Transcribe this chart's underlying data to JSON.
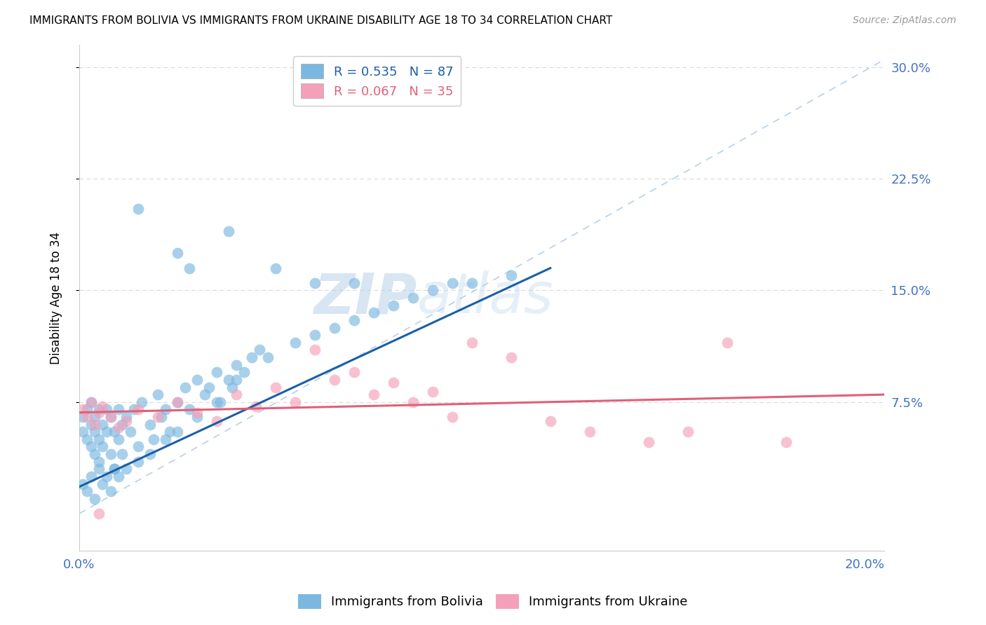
{
  "title": "IMMIGRANTS FROM BOLIVIA VS IMMIGRANTS FROM UKRAINE DISABILITY AGE 18 TO 34 CORRELATION CHART",
  "source": "Source: ZipAtlas.com",
  "ylabel": "Disability Age 18 to 34",
  "bolivia_R": 0.535,
  "bolivia_N": 87,
  "ukraine_R": 0.067,
  "ukraine_N": 35,
  "bolivia_color": "#7ab8e0",
  "ukraine_color": "#f4a0b8",
  "bolivia_line_color": "#1a5fa8",
  "ukraine_line_color": "#e0607a",
  "ref_line_color": "#b8cfe8",
  "ytick_labels": [
    "7.5%",
    "15.0%",
    "22.5%",
    "30.0%"
  ],
  "ytick_values": [
    0.075,
    0.15,
    0.225,
    0.3
  ],
  "xtick_positions": [
    0.0,
    0.05,
    0.1,
    0.15,
    0.2
  ],
  "xtick_labels": [
    "0.0%",
    "",
    "",
    "",
    "20.0%"
  ],
  "xlim": [
    0.0,
    0.205
  ],
  "ylim": [
    -0.025,
    0.315
  ],
  "watermark_zip": "ZIP",
  "watermark_atlas": "atlas",
  "background_color": "#ffffff",
  "grid_color": "#d8d8d8",
  "bolivia_x": [
    0.001,
    0.001,
    0.002,
    0.002,
    0.003,
    0.003,
    0.003,
    0.004,
    0.004,
    0.004,
    0.005,
    0.005,
    0.005,
    0.006,
    0.006,
    0.007,
    0.007,
    0.008,
    0.008,
    0.009,
    0.009,
    0.01,
    0.01,
    0.011,
    0.011,
    0.012,
    0.013,
    0.014,
    0.015,
    0.016,
    0.018,
    0.019,
    0.02,
    0.021,
    0.022,
    0.023,
    0.025,
    0.027,
    0.028,
    0.03,
    0.032,
    0.033,
    0.035,
    0.036,
    0.038,
    0.039,
    0.04,
    0.042,
    0.044,
    0.046,
    0.001,
    0.002,
    0.003,
    0.004,
    0.005,
    0.006,
    0.007,
    0.008,
    0.009,
    0.01,
    0.012,
    0.015,
    0.018,
    0.022,
    0.025,
    0.03,
    0.035,
    0.04,
    0.048,
    0.055,
    0.06,
    0.065,
    0.07,
    0.075,
    0.08,
    0.085,
    0.09,
    0.095,
    0.1,
    0.11,
    0.025,
    0.038,
    0.05,
    0.06,
    0.07,
    0.015,
    0.028
  ],
  "bolivia_y": [
    0.065,
    0.055,
    0.07,
    0.05,
    0.06,
    0.045,
    0.075,
    0.055,
    0.04,
    0.065,
    0.07,
    0.05,
    0.035,
    0.06,
    0.045,
    0.07,
    0.055,
    0.065,
    0.04,
    0.055,
    0.03,
    0.07,
    0.05,
    0.06,
    0.04,
    0.065,
    0.055,
    0.07,
    0.045,
    0.075,
    0.06,
    0.05,
    0.08,
    0.065,
    0.07,
    0.055,
    0.075,
    0.085,
    0.07,
    0.09,
    0.08,
    0.085,
    0.095,
    0.075,
    0.09,
    0.085,
    0.1,
    0.095,
    0.105,
    0.11,
    0.02,
    0.015,
    0.025,
    0.01,
    0.03,
    0.02,
    0.025,
    0.015,
    0.03,
    0.025,
    0.03,
    0.035,
    0.04,
    0.05,
    0.055,
    0.065,
    0.075,
    0.09,
    0.105,
    0.115,
    0.12,
    0.125,
    0.13,
    0.135,
    0.14,
    0.145,
    0.15,
    0.155,
    0.155,
    0.16,
    0.175,
    0.19,
    0.165,
    0.155,
    0.155,
    0.205,
    0.165
  ],
  "ukraine_x": [
    0.001,
    0.002,
    0.003,
    0.004,
    0.005,
    0.006,
    0.008,
    0.01,
    0.012,
    0.015,
    0.02,
    0.025,
    0.03,
    0.035,
    0.04,
    0.045,
    0.05,
    0.055,
    0.06,
    0.065,
    0.07,
    0.075,
    0.08,
    0.085,
    0.09,
    0.095,
    0.1,
    0.11,
    0.12,
    0.13,
    0.145,
    0.155,
    0.165,
    0.18,
    0.005
  ],
  "ukraine_y": [
    0.07,
    0.065,
    0.075,
    0.06,
    0.068,
    0.072,
    0.065,
    0.058,
    0.062,
    0.07,
    0.065,
    0.075,
    0.068,
    0.062,
    0.08,
    0.072,
    0.085,
    0.075,
    0.11,
    0.09,
    0.095,
    0.08,
    0.088,
    0.075,
    0.082,
    0.065,
    0.115,
    0.105,
    0.062,
    0.055,
    0.048,
    0.055,
    0.115,
    0.048,
    0.0
  ],
  "bolivia_trend_x": [
    0.0,
    0.12
  ],
  "bolivia_trend_y": [
    0.018,
    0.165
  ],
  "ukraine_trend_x": [
    0.0,
    0.205
  ],
  "ukraine_trend_y": [
    0.068,
    0.08
  ],
  "ref_line_x": [
    0.0,
    0.205
  ],
  "ref_line_y": [
    0.0,
    0.305
  ]
}
